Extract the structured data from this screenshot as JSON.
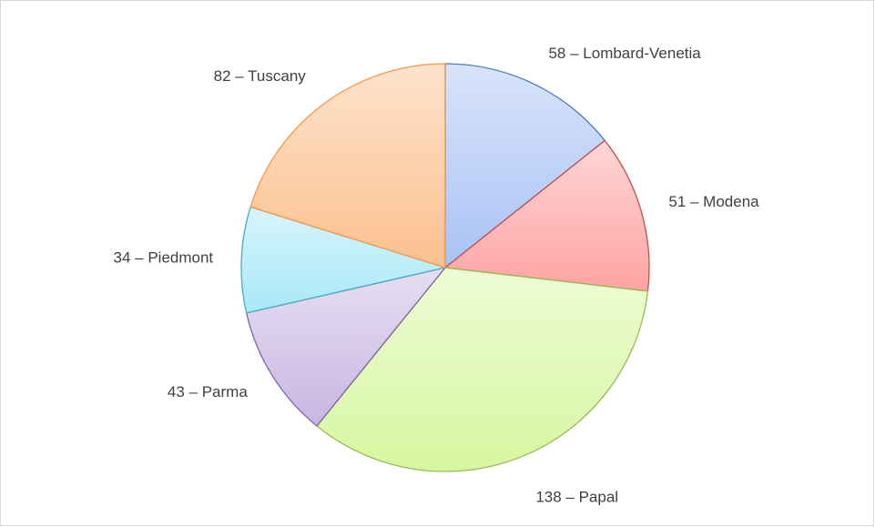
{
  "chart_data": {
    "type": "pie",
    "values": [
      58,
      51,
      138,
      43,
      34,
      82
    ],
    "value_labels": [
      "58 – Lombard-Venetia",
      "51 – Modena",
      "138 – Papal",
      "43 – Parma",
      "34 – Piedmont",
      "82 – Tuscany"
    ],
    "colors": [
      "#a9c2f5",
      "#ffa3a3",
      "#d6f7a0",
      "#c8b6e2",
      "#a8e8f8",
      "#fbc08e"
    ],
    "edge_colors": [
      "#4a7ebb",
      "#c0504d",
      "#9bbb59",
      "#8064a2",
      "#4bacc6",
      "#f79646"
    ]
  }
}
